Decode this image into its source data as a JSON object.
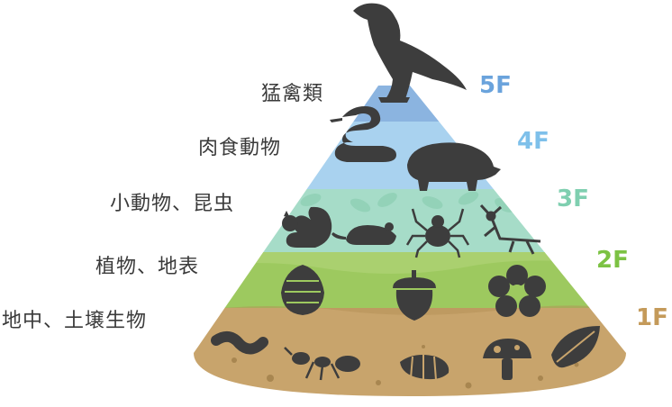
{
  "levels": [
    {
      "floor": "5F",
      "label": "猛禽類",
      "color": "#8bb4e0",
      "floor_color": "#6aa3dc"
    },
    {
      "floor": "4F",
      "label": "肉食動物",
      "color": "#a9d2ef",
      "floor_color": "#7ec0ea"
    },
    {
      "floor": "3F",
      "label": "小動物、昆虫",
      "color": "#a6dcc8",
      "floor_color": "#7fcfb0"
    },
    {
      "floor": "2F",
      "label": "植物、地表",
      "color": "#9dc95f",
      "floor_color": "#7cc243"
    },
    {
      "floor": "1F",
      "label": "地中、土壌生物",
      "color": "#c8a46c",
      "floor_color": "#c49a5a"
    }
  ],
  "icons": {
    "5F": [
      "eagle-icon"
    ],
    "4F": [
      "snake-icon",
      "boar-icon"
    ],
    "3F": [
      "squirrel-icon",
      "mouse-icon",
      "spider-icon",
      "mantis-icon"
    ],
    "2F": [
      "pinecone-icon",
      "acorn-icon",
      "flower-icon"
    ],
    "1F": [
      "worm-icon",
      "ant-icon",
      "larva-icon",
      "mushroom-icon",
      "leaf-icon"
    ]
  },
  "colors": {
    "silhouette": "#3d3d3d",
    "soil_dots": "#a88650"
  }
}
